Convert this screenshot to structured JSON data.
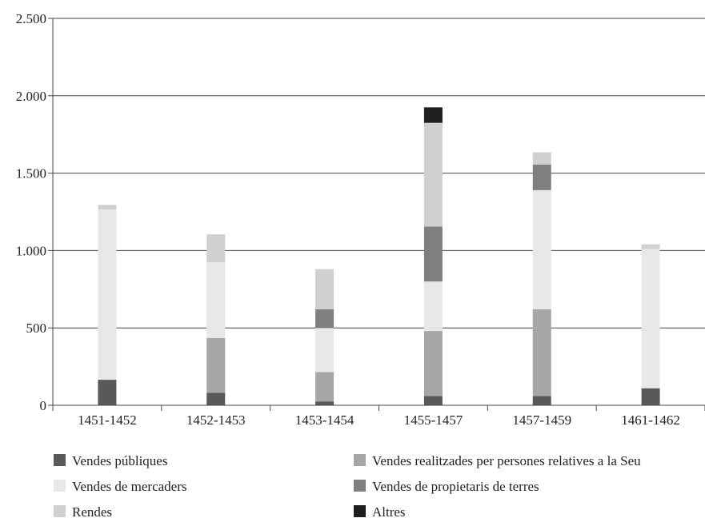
{
  "chart_data": {
    "type": "bar",
    "stacked": true,
    "categories": [
      "1451-1452",
      "1452-1453",
      "1453-1454",
      "1455-1457",
      "1457-1459",
      "1461-1462"
    ],
    "series": [
      {
        "name": "Vendes públiques",
        "color": "#595959",
        "values": [
          165,
          80,
          25,
          60,
          60,
          110
        ]
      },
      {
        "name": "Vendes realitzades per persones relatives a la Seu",
        "color": "#a6a6a6",
        "values": [
          0,
          355,
          190,
          420,
          560,
          0
        ]
      },
      {
        "name": "Vendes de mercaders",
        "color": "#e8e8e8",
        "values": [
          1100,
          490,
          285,
          320,
          770,
          900
        ]
      },
      {
        "name": "Vendes de propietaris de terres",
        "color": "#7f7f7f",
        "values": [
          0,
          0,
          120,
          355,
          165,
          0
        ]
      },
      {
        "name": "Rendes",
        "color": "#d0d0d0",
        "values": [
          30,
          180,
          260,
          670,
          80,
          30
        ]
      },
      {
        "name": "Altres",
        "color": "#1f1f1f",
        "values": [
          0,
          0,
          0,
          100,
          0,
          0
        ]
      }
    ],
    "ylim": [
      0,
      2500
    ],
    "yticks": [
      0,
      500,
      1000,
      1500,
      2000,
      2500
    ],
    "ytick_labels": [
      "0",
      "500",
      "1.000",
      "1.500",
      "2.000",
      "2.500"
    ],
    "grid": true,
    "legend_position": "bottom",
    "legend_order": [
      "Vendes públiques",
      "Vendes realitzades per persones relatives a la Seu",
      "Vendes de mercaders",
      "Vendes de propietaris de terres",
      "Rendes",
      "Altres"
    ]
  }
}
